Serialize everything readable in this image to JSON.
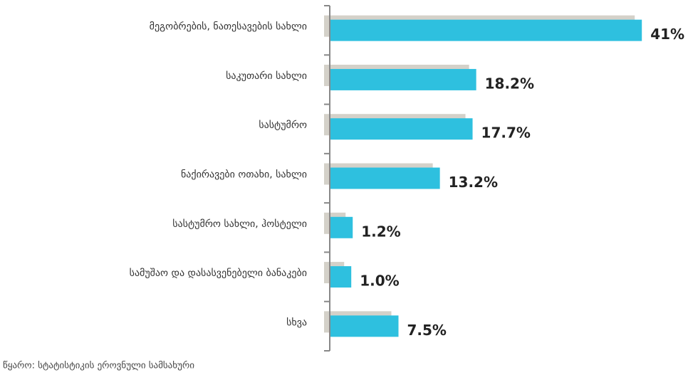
{
  "chart_data": {
    "type": "bar",
    "orientation": "horizontal",
    "categories": [
      "მეგობრების, ნათესავების სახლი",
      "საკუთარი სახლი",
      "სასტუმრო",
      "ნაქირავები ოთახი, სახლი",
      "სასტუმრო სახლი, ჰოსტელი",
      "სამუშაო და დასასვენებელი ბანაკები",
      "სხვა"
    ],
    "values": [
      41,
      18.2,
      17.7,
      13.2,
      1.2,
      1.0,
      7.5
    ],
    "value_labels": [
      "41%",
      "18.2%",
      "17.7%",
      "13.2%",
      "1.2%",
      "1.0%",
      "7.5%"
    ],
    "color": "#2ec0df",
    "shadow_color": "#d4d1c9",
    "source": "წყარო: სტატისტიკის ეროვნული სამსახური"
  }
}
